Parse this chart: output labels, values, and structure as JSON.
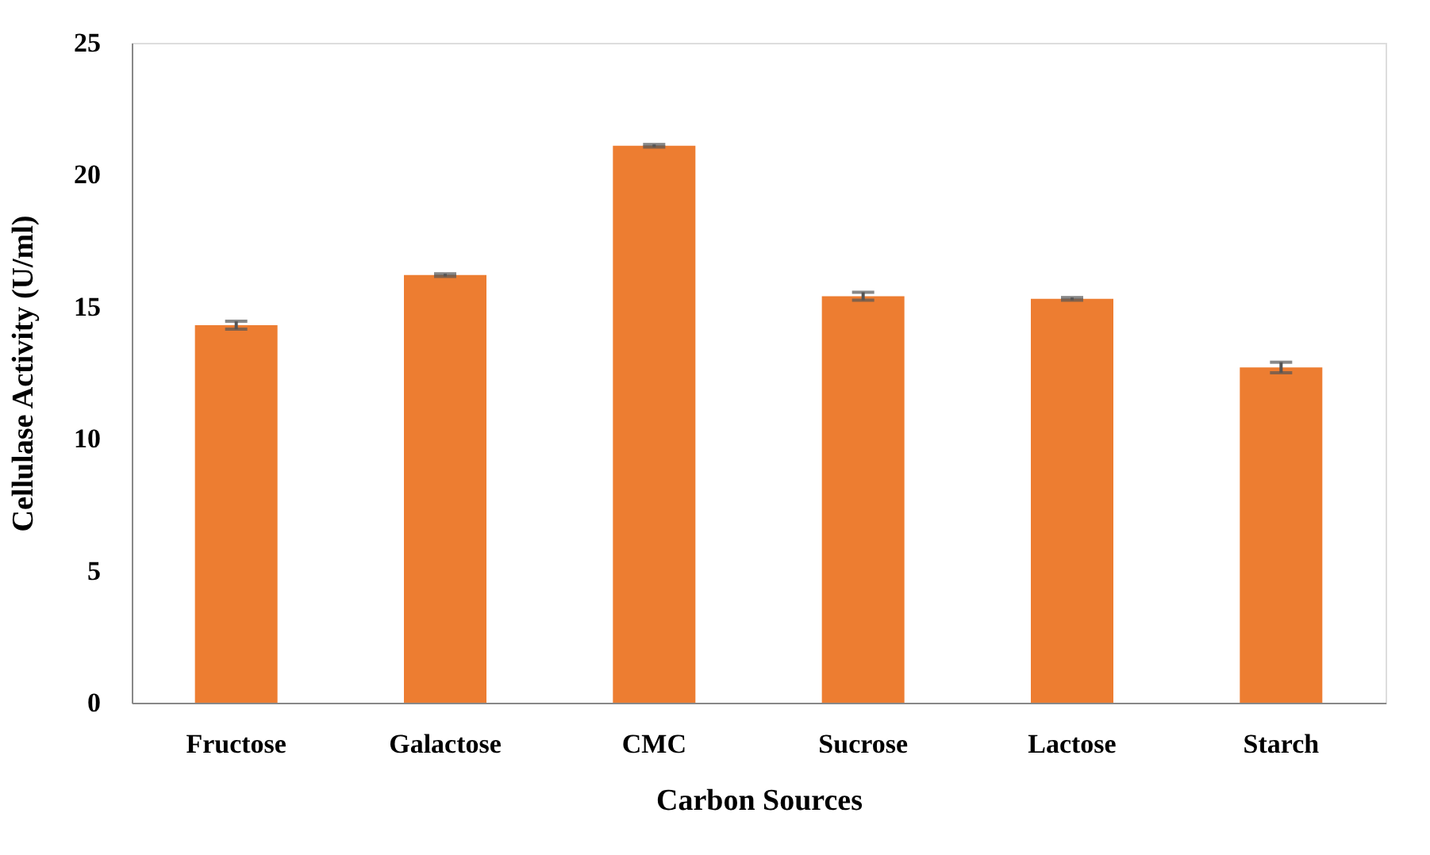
{
  "chart_data": {
    "type": "bar",
    "xlabel": "Carbon Sources",
    "ylabel": "Cellulase Activity (U/ml)",
    "categories": [
      "Fructose",
      "Galactose",
      "CMC",
      "Sucrose",
      "Lactose",
      "Starch"
    ],
    "values": [
      14.3,
      16.2,
      21.1,
      15.4,
      15.3,
      12.7
    ],
    "errors": [
      0.15,
      0.05,
      0.05,
      0.15,
      0.05,
      0.2
    ],
    "color": "#ed7d31",
    "ylim": [
      0,
      25
    ],
    "yticks": [
      0,
      5,
      10,
      15,
      20,
      25
    ],
    "grid": false
  }
}
